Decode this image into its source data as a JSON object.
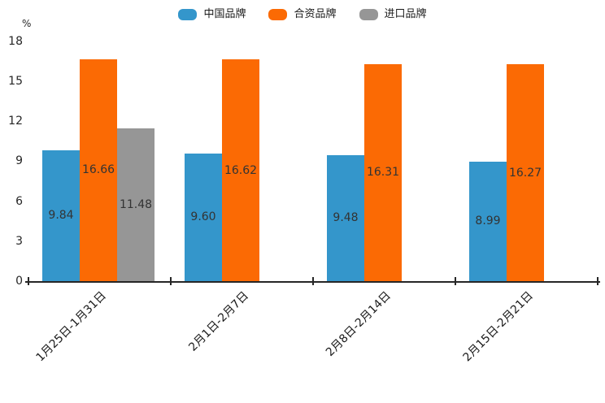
{
  "chart_data": {
    "type": "bar",
    "title": "",
    "unit_label": "%",
    "xlabel": "",
    "ylabel": "%",
    "ylim": [
      0,
      18
    ],
    "yticks": [
      0,
      3,
      6,
      9,
      12,
      15,
      18
    ],
    "grid": false,
    "legend_position": "top-center",
    "categories": [
      "1月25日-1月31日",
      "2月1日-2月7日",
      "2月8日-2月14日",
      "2月15日-2月21日"
    ],
    "series": [
      {
        "name": "中国品牌",
        "color": "#3496CB",
        "values": [
          9.84,
          9.6,
          9.48,
          8.99
        ]
      },
      {
        "name": "合资品牌",
        "color": "#FB6A04",
        "values": [
          16.66,
          16.62,
          16.31,
          16.27
        ]
      },
      {
        "name": "进口品牌",
        "color": "#969696",
        "values": [
          11.48,
          null,
          null,
          null
        ]
      }
    ],
    "value_label_format": "2-decimals",
    "axis_color": "#262626"
  }
}
